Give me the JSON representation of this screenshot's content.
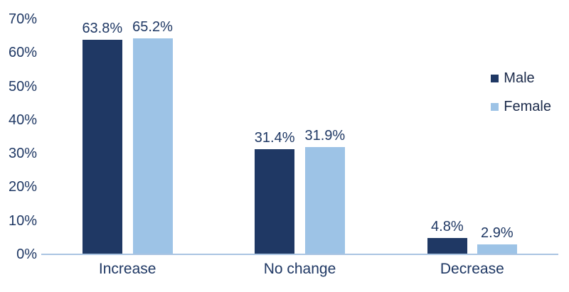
{
  "chart_data": {
    "type": "bar",
    "title": "",
    "xlabel": "",
    "ylabel": "",
    "categories": [
      "Increase",
      "No change",
      "Decrease"
    ],
    "series": [
      {
        "name": "Male",
        "color": "#1f3864",
        "values": [
          63.8,
          31.4,
          4.8
        ],
        "labels": [
          "63.8%",
          "31.4%",
          "4.8%"
        ]
      },
      {
        "name": "Female",
        "color": "#9dc3e6",
        "values": [
          65.2,
          31.9,
          2.9
        ],
        "labels": [
          "65.2%",
          "31.9%",
          "2.9%"
        ]
      }
    ],
    "ylim": [
      0,
      70
    ],
    "yticks": [
      "0%",
      "10%",
      "20%",
      "30%",
      "40%",
      "50%",
      "60%",
      "70%"
    ],
    "grid": false,
    "legend_position": "right",
    "axis_line_color": "#aac4e2",
    "text_color": "#1f3864"
  }
}
